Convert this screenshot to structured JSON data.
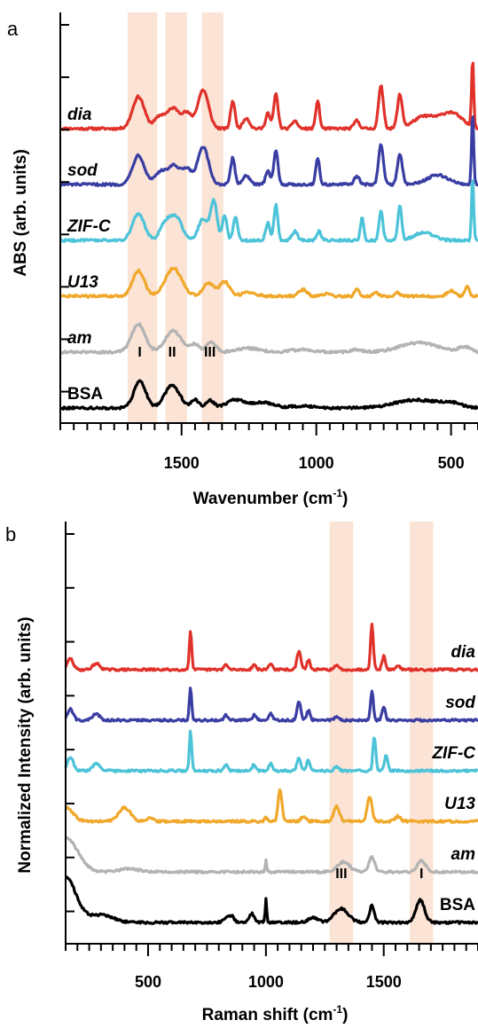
{
  "chart_data": [
    {
      "panel": "a",
      "type": "line",
      "xlabel": "Wavenumber (cm",
      "xlabel_sup": "-1",
      "xlabel_end": ")",
      "ylabel": "ABS (arb. units)",
      "xlim": [
        1950,
        400
      ],
      "x_reversed": true,
      "xticks": [
        1500,
        1000,
        500
      ],
      "xtick_labels": [
        "1500",
        "1000",
        "500"
      ],
      "grid": false,
      "highlight_bands": [
        {
          "from": 1700,
          "to": 1590,
          "color": "#fbe3d6"
        },
        {
          "from": 1560,
          "to": 1480,
          "color": "#fbe3d6"
        },
        {
          "from": 1425,
          "to": 1345,
          "color": "#fbe3d6"
        }
      ],
      "band_labels": [
        {
          "text": "I",
          "x": 1655
        },
        {
          "text": "II",
          "x": 1535
        },
        {
          "text": "III",
          "x": 1395
        }
      ],
      "series": [
        {
          "name": "dia",
          "label_style": "italic",
          "color": "#e0322a",
          "offset": 5,
          "peaks": [
            [
              1660,
              1.2,
              22
            ],
            [
              1580,
              0.45,
              20
            ],
            [
              1530,
              0.75,
              22
            ],
            [
              1480,
              0.55,
              18
            ],
            [
              1420,
              1.45,
              20
            ],
            [
              1310,
              1.05,
              8
            ],
            [
              1260,
              0.4,
              12
            ],
            [
              1180,
              0.6,
              8
            ],
            [
              1150,
              1.3,
              8
            ],
            [
              1080,
              0.3,
              10
            ],
            [
              995,
              1.05,
              7
            ],
            [
              850,
              0.3,
              10
            ],
            [
              760,
              1.6,
              9
            ],
            [
              690,
              1.25,
              9
            ],
            [
              600,
              0.45,
              40
            ],
            [
              500,
              0.6,
              40
            ],
            [
              420,
              2.6,
              4
            ]
          ]
        },
        {
          "name": "sod",
          "label_style": "italic",
          "color": "#3a3ea3",
          "offset": 4,
          "peaks": [
            [
              1660,
              1.1,
              22
            ],
            [
              1580,
              0.45,
              20
            ],
            [
              1530,
              0.7,
              22
            ],
            [
              1480,
              0.55,
              18
            ],
            [
              1420,
              1.4,
              20
            ],
            [
              1310,
              1.0,
              8
            ],
            [
              1260,
              0.35,
              12
            ],
            [
              1180,
              0.55,
              8
            ],
            [
              1150,
              1.25,
              8
            ],
            [
              995,
              1.0,
              7
            ],
            [
              850,
              0.3,
              10
            ],
            [
              760,
              1.5,
              9
            ],
            [
              690,
              1.15,
              9
            ],
            [
              550,
              0.35,
              40
            ],
            [
              420,
              2.7,
              4
            ]
          ]
        },
        {
          "name": "ZIF-C",
          "label_style": "italic",
          "color": "#4cc3d8",
          "offset": 3,
          "peaks": [
            [
              1660,
              1.0,
              22
            ],
            [
              1560,
              0.6,
              20
            ],
            [
              1520,
              0.85,
              22
            ],
            [
              1420,
              0.8,
              18
            ],
            [
              1380,
              1.45,
              12
            ],
            [
              1340,
              0.95,
              8
            ],
            [
              1300,
              0.9,
              8
            ],
            [
              1180,
              0.65,
              8
            ],
            [
              1150,
              1.35,
              7
            ],
            [
              1080,
              0.35,
              10
            ],
            [
              990,
              0.35,
              8
            ],
            [
              830,
              0.9,
              6
            ],
            [
              760,
              1.1,
              7
            ],
            [
              690,
              1.35,
              7
            ],
            [
              600,
              0.3,
              35
            ],
            [
              420,
              2.4,
              4
            ]
          ]
        },
        {
          "name": "U13",
          "label_style": "italic",
          "color": "#f0a82a",
          "offset": 2,
          "peaks": [
            [
              1660,
              0.95,
              22
            ],
            [
              1530,
              1.05,
              30
            ],
            [
              1400,
              0.5,
              20
            ],
            [
              1340,
              0.55,
              18
            ],
            [
              1250,
              0.15,
              25
            ],
            [
              1050,
              0.25,
              15
            ],
            [
              960,
              0.12,
              12
            ],
            [
              850,
              0.3,
              8
            ],
            [
              780,
              0.15,
              10
            ],
            [
              700,
              0.15,
              10
            ],
            [
              500,
              0.2,
              15
            ],
            [
              440,
              0.35,
              8
            ]
          ]
        },
        {
          "name": "am",
          "label_style": "italic",
          "color": "#b3b3b3",
          "offset": 1,
          "peaks": [
            [
              1660,
              1.05,
              25
            ],
            [
              1530,
              0.8,
              30
            ],
            [
              1450,
              0.3,
              15
            ],
            [
              1390,
              0.35,
              18
            ],
            [
              1250,
              0.15,
              40
            ],
            [
              1050,
              0.1,
              40
            ],
            [
              850,
              0.1,
              20
            ],
            [
              620,
              0.35,
              70
            ],
            [
              450,
              0.2,
              20
            ]
          ]
        },
        {
          "name": "BSA",
          "label_style": "plain",
          "color": "#000000",
          "offset": 0,
          "peaks": [
            [
              1655,
              1.0,
              22
            ],
            [
              1535,
              0.85,
              28
            ],
            [
              1450,
              0.3,
              14
            ],
            [
              1395,
              0.3,
              14
            ],
            [
              1300,
              0.3,
              35
            ],
            [
              1200,
              0.2,
              40
            ],
            [
              1050,
              0.08,
              40
            ],
            [
              630,
              0.3,
              80
            ],
            [
              500,
              0.15,
              40
            ]
          ]
        }
      ]
    },
    {
      "panel": "b",
      "type": "line",
      "xlabel": "Raman shift (cm",
      "xlabel_sup": "-1",
      "xlabel_end": ")",
      "ylabel": "Normalized Intensity (arb. units)",
      "xlim": [
        150,
        1900
      ],
      "x_reversed": false,
      "xticks": [
        500,
        1000,
        1500
      ],
      "xtick_labels": [
        "500",
        "1000",
        "1500"
      ],
      "grid": false,
      "highlight_bands": [
        {
          "from": 1270,
          "to": 1370,
          "color": "#fbe3d6"
        },
        {
          "from": 1610,
          "to": 1710,
          "color": "#fbe3d6"
        }
      ],
      "band_labels": [
        {
          "text": "III",
          "x": 1320
        },
        {
          "text": "I",
          "x": 1660
        }
      ],
      "series": [
        {
          "name": "dia",
          "label_style": "italic",
          "color": "#e0322a",
          "offset": 5,
          "peaks": [
            [
              170,
              0.45,
              12
            ],
            [
              280,
              0.25,
              15
            ],
            [
              680,
              1.6,
              5
            ],
            [
              830,
              0.2,
              8
            ],
            [
              950,
              0.2,
              8
            ],
            [
              1020,
              0.25,
              8
            ],
            [
              1140,
              0.75,
              8
            ],
            [
              1180,
              0.4,
              7
            ],
            [
              1300,
              0.15,
              10
            ],
            [
              1450,
              1.85,
              6
            ],
            [
              1500,
              0.55,
              7
            ],
            [
              1560,
              0.15,
              10
            ]
          ]
        },
        {
          "name": "sod",
          "label_style": "italic",
          "color": "#3a3ea3",
          "offset": 4,
          "peaks": [
            [
              170,
              0.45,
              12
            ],
            [
              280,
              0.25,
              15
            ],
            [
              680,
              1.35,
              5
            ],
            [
              830,
              0.2,
              8
            ],
            [
              950,
              0.2,
              8
            ],
            [
              1020,
              0.25,
              8
            ],
            [
              1140,
              0.75,
              8
            ],
            [
              1180,
              0.4,
              7
            ],
            [
              1300,
              0.12,
              10
            ],
            [
              1450,
              1.2,
              6
            ],
            [
              1500,
              0.55,
              7
            ]
          ]
        },
        {
          "name": "ZIF-C",
          "label_style": "italic",
          "color": "#4cc3d8",
          "offset": 3,
          "peaks": [
            [
              170,
              0.55,
              12
            ],
            [
              280,
              0.3,
              15
            ],
            [
              680,
              1.65,
              5
            ],
            [
              830,
              0.25,
              8
            ],
            [
              950,
              0.25,
              8
            ],
            [
              1020,
              0.3,
              8
            ],
            [
              1140,
              0.55,
              8
            ],
            [
              1180,
              0.45,
              7
            ],
            [
              1300,
              0.15,
              10
            ],
            [
              1460,
              1.4,
              6
            ],
            [
              1510,
              0.6,
              7
            ]
          ]
        },
        {
          "name": "U13",
          "label_style": "italic",
          "color": "#f0a82a",
          "offset": 2,
          "peaks": [
            [
              150,
              0.55,
              30
            ],
            [
              400,
              0.55,
              25
            ],
            [
              510,
              0.15,
              10
            ],
            [
              1000,
              0.15,
              6
            ],
            [
              1060,
              1.3,
              8
            ],
            [
              1160,
              0.2,
              10
            ],
            [
              1300,
              0.6,
              12
            ],
            [
              1440,
              1.0,
              10
            ],
            [
              1560,
              0.2,
              12
            ]
          ]
        },
        {
          "name": "am",
          "label_style": "italic",
          "color": "#b3b3b3",
          "offset": 1,
          "peaks": [
            [
              150,
              1.4,
              50
            ],
            [
              420,
              0.12,
              40
            ],
            [
              1000,
              0.45,
              3
            ],
            [
              1330,
              0.4,
              25
            ],
            [
              1450,
              0.6,
              12
            ],
            [
              1660,
              0.45,
              18
            ]
          ]
        },
        {
          "name": "BSA",
          "label_style": "plain",
          "color": "#000000",
          "offset": 0,
          "peaks": [
            [
              150,
              1.8,
              45
            ],
            [
              300,
              0.3,
              50
            ],
            [
              830,
              0.2,
              12
            ],
            [
              855,
              0.25,
              10
            ],
            [
              940,
              0.35,
              12
            ],
            [
              1000,
              1.0,
              3
            ],
            [
              1200,
              0.2,
              20
            ],
            [
              1320,
              0.55,
              30
            ],
            [
              1450,
              0.7,
              10
            ],
            [
              1655,
              0.9,
              18
            ]
          ]
        }
      ]
    }
  ]
}
